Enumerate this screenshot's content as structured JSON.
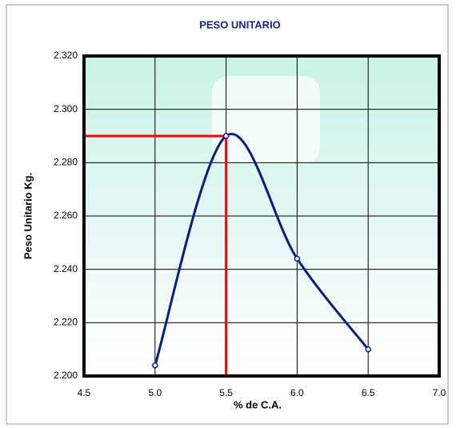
{
  "chart_data": {
    "type": "line",
    "title": "PESO UNITARIO",
    "x_label": "% de C.A.",
    "y_label": "Peso Unitario Kg.",
    "x": [
      5.0,
      5.5,
      6.0,
      6.5
    ],
    "series": [
      {
        "color": "#0d1a80",
        "values": [
          2.204,
          2.29,
          2.244,
          2.21
        ]
      }
    ],
    "xlim": [
      4.5,
      7.0
    ],
    "xticks": [
      4.5,
      {
        "value": 5.0,
        "label": "5.0"
      },
      5.5,
      {
        "value": 6.0,
        "label": "6.0"
      },
      6.5,
      {
        "value": 7.0,
        "label": "7.0"
      }
    ],
    "ylim": [
      2.2,
      2.32
    ],
    "yticks": [
      {
        "value": 2.2,
        "label": "2.200"
      },
      {
        "value": 2.22,
        "label": "2.220"
      },
      {
        "value": 2.24,
        "label": "2.240"
      },
      {
        "value": 2.26,
        "label": "2.260"
      },
      {
        "value": 2.28,
        "label": "2.280"
      },
      {
        "value": 2.3,
        "label": "2.300"
      },
      {
        "value": 2.32,
        "label": "2.320"
      }
    ],
    "grid": true,
    "marker": {
      "x": 5.5,
      "y": 2.29,
      "color": "#ff0000"
    }
  }
}
